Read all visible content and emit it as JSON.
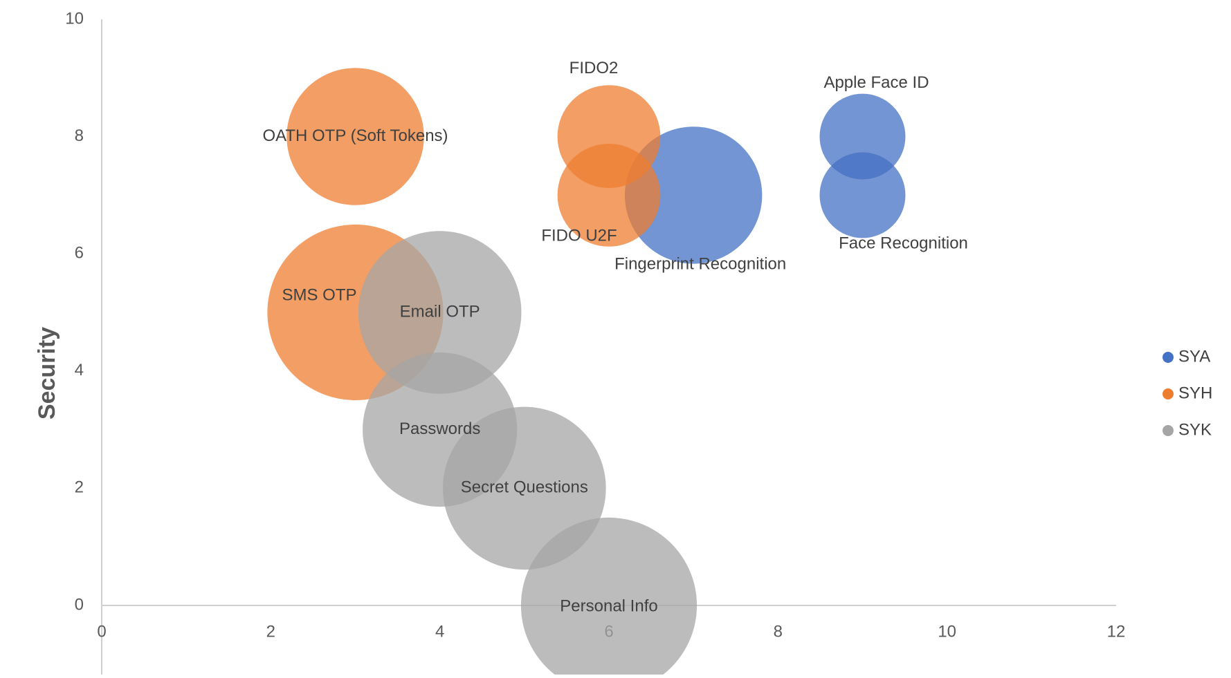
{
  "chart_data": {
    "type": "bubble",
    "title": "",
    "xlabel": "",
    "ylabel": "Security",
    "xlim": [
      0,
      12
    ],
    "ylim": [
      0,
      10
    ],
    "x_ticks": [
      0,
      2,
      4,
      6,
      8,
      10,
      12
    ],
    "y_ticks": [
      0,
      2,
      4,
      6,
      8,
      10
    ],
    "grid": false,
    "legend_position": "right",
    "series": [
      {
        "name": "SYA",
        "color": "#4472C4",
        "points": [
          {
            "label": "Apple Face ID",
            "x": 9,
            "y": 8,
            "size": 1
          },
          {
            "label": "Face Recognition",
            "x": 9,
            "y": 7,
            "size": 1
          },
          {
            "label": "Fingerprint Recognition",
            "x": 7,
            "y": 7,
            "size": 1.6
          }
        ]
      },
      {
        "name": "SYH",
        "color": "#ED7D31",
        "points": [
          {
            "label": "FIDO2",
            "x": 6,
            "y": 8,
            "size": 1.2
          },
          {
            "label": "FIDO U2F",
            "x": 6,
            "y": 7,
            "size": 1.2
          },
          {
            "label": "OATH OTP (Soft Tokens)",
            "x": 3,
            "y": 8,
            "size": 1.6
          },
          {
            "label": "SMS OTP",
            "x": 3,
            "y": 5,
            "size": 2.05
          }
        ]
      },
      {
        "name": "SYK",
        "color": "#A5A5A5",
        "points": [
          {
            "label": "Email OTP",
            "x": 4,
            "y": 5,
            "size": 1.9
          },
          {
            "label": "Passwords",
            "x": 4,
            "y": 3,
            "size": 1.8
          },
          {
            "label": "Secret Questions",
            "x": 5,
            "y": 2,
            "size": 1.9
          },
          {
            "label": "Personal Info",
            "x": 6,
            "y": 0,
            "size": 2.05
          }
        ]
      }
    ]
  }
}
